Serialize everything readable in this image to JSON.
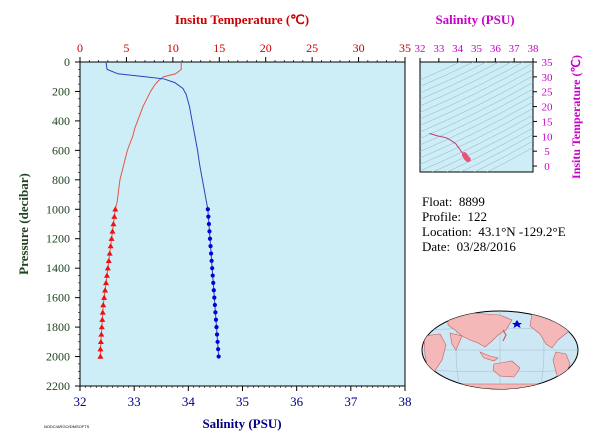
{
  "chart_data": [
    {
      "type": "line",
      "name": "profile",
      "top_axis_label": "Insitu Temperature (℃)",
      "bottom_axis_label": "Salinity (PSU)",
      "left_axis_label": "Pressure (decibar)",
      "temperature_ticks": [
        "0",
        "5",
        "10",
        "15",
        "20",
        "25",
        "30",
        "35"
      ],
      "salinity_ticks": [
        "32",
        "33",
        "34",
        "35",
        "36",
        "37",
        "38"
      ],
      "pressure_ticks": [
        "0",
        "200",
        "400",
        "600",
        "800",
        "1000",
        "1200",
        "1400",
        "1600",
        "1800",
        "2000",
        "2200"
      ],
      "xlim_temperature": [
        0,
        35
      ],
      "xlim_salinity": [
        32,
        38
      ],
      "ylim_pressure": [
        2200,
        0
      ],
      "colors": {
        "temperature": "#e8534a",
        "salinity": "#2244bb",
        "temp_axis": "#cc0000",
        "sal_axis": "#000080",
        "plot_bg": "#cdeef6"
      },
      "series": [
        {
          "key": "temperature",
          "line": [
            [
              10.9,
              0
            ],
            [
              10.9,
              50
            ],
            [
              10.3,
              80
            ],
            [
              9.0,
              100
            ],
            [
              8.4,
              130
            ],
            [
              8.0,
              160
            ],
            [
              7.6,
              200
            ],
            [
              7.2,
              250
            ],
            [
              6.8,
              300
            ],
            [
              6.5,
              350
            ],
            [
              6.2,
              400
            ],
            [
              5.9,
              450
            ],
            [
              5.7,
              500
            ],
            [
              5.4,
              550
            ],
            [
              5.1,
              600
            ],
            [
              4.9,
              650
            ],
            [
              4.7,
              700
            ],
            [
              4.5,
              750
            ],
            [
              4.3,
              800
            ],
            [
              4.2,
              850
            ],
            [
              4.1,
              900
            ],
            [
              4.0,
              950
            ],
            [
              3.8,
              1000
            ]
          ],
          "markers": [
            [
              3.8,
              1000
            ],
            [
              3.7,
              1050
            ],
            [
              3.6,
              1100
            ],
            [
              3.5,
              1150
            ],
            [
              3.4,
              1200
            ],
            [
              3.3,
              1250
            ],
            [
              3.2,
              1300
            ],
            [
              3.1,
              1350
            ],
            [
              3.0,
              1400
            ],
            [
              2.9,
              1450
            ],
            [
              2.8,
              1500
            ],
            [
              2.7,
              1550
            ],
            [
              2.6,
              1600
            ],
            [
              2.5,
              1650
            ],
            [
              2.45,
              1700
            ],
            [
              2.4,
              1750
            ],
            [
              2.35,
              1800
            ],
            [
              2.3,
              1850
            ],
            [
              2.25,
              1900
            ],
            [
              2.2,
              1950
            ],
            [
              2.2,
              2000
            ]
          ]
        },
        {
          "key": "salinity",
          "line": [
            [
              32.48,
              0
            ],
            [
              32.5,
              50
            ],
            [
              32.7,
              80
            ],
            [
              33.2,
              100
            ],
            [
              33.55,
              115
            ],
            [
              33.75,
              140
            ],
            [
              33.9,
              180
            ],
            [
              33.96,
              220
            ],
            [
              34.02,
              300
            ],
            [
              34.07,
              400
            ],
            [
              34.12,
              500
            ],
            [
              34.17,
              600
            ],
            [
              34.21,
              700
            ],
            [
              34.26,
              800
            ],
            [
              34.31,
              900
            ],
            [
              34.36,
              1000
            ]
          ],
          "markers": [
            [
              34.36,
              1000
            ],
            [
              34.37,
              1050
            ],
            [
              34.38,
              1100
            ],
            [
              34.39,
              1150
            ],
            [
              34.4,
              1200
            ],
            [
              34.41,
              1250
            ],
            [
              34.42,
              1300
            ],
            [
              34.43,
              1350
            ],
            [
              34.44,
              1400
            ],
            [
              34.45,
              1450
            ],
            [
              34.46,
              1500
            ],
            [
              34.47,
              1550
            ],
            [
              34.48,
              1600
            ],
            [
              34.49,
              1650
            ],
            [
              34.5,
              1700
            ],
            [
              34.51,
              1750
            ],
            [
              34.52,
              1800
            ],
            [
              34.53,
              1850
            ],
            [
              34.54,
              1900
            ],
            [
              34.55,
              1950
            ],
            [
              34.56,
              2000
            ]
          ]
        }
      ]
    },
    {
      "type": "scatter",
      "name": "ts-diagram",
      "top_axis_label": "Salinity (PSU)",
      "right_axis_label": "Insitu Temperature (℃)",
      "salinity_ticks": [
        "32",
        "33",
        "34",
        "35",
        "36",
        "37",
        "38"
      ],
      "temperature_ticks": [
        "0",
        "5",
        "10",
        "15",
        "20",
        "25",
        "30",
        "35"
      ],
      "xlim": [
        32,
        38
      ],
      "ylim": [
        -2,
        35
      ],
      "color": "#cc44cc",
      "line_color": "#e8537a",
      "line": [
        [
          32.5,
          11
        ],
        [
          32.9,
          10.2
        ],
        [
          33.4,
          9.5
        ],
        [
          33.7,
          8.4
        ],
        [
          33.9,
          7.5
        ],
        [
          34.0,
          6.6
        ],
        [
          34.1,
          5.8
        ],
        [
          34.2,
          4.8
        ],
        [
          34.3,
          4.1
        ],
        [
          34.36,
          3.8
        ]
      ],
      "markers": [
        [
          34.36,
          3.8
        ],
        [
          34.38,
          3.6
        ],
        [
          34.4,
          3.4
        ],
        [
          34.42,
          3.2
        ],
        [
          34.44,
          3.0
        ],
        [
          34.46,
          2.8
        ],
        [
          34.48,
          2.6
        ],
        [
          34.5,
          2.5
        ],
        [
          34.52,
          2.4
        ],
        [
          34.54,
          2.3
        ],
        [
          34.56,
          2.2
        ]
      ]
    }
  ],
  "info": {
    "float_label": "Float:",
    "float_value": "8899",
    "profile_label": "Profile:",
    "profile_value": "122",
    "location_label": "Location:",
    "location_value": "43.1°N  -129.2°E",
    "date_label": "Date:",
    "date_value": "03/28/2016"
  },
  "map": {
    "marker_lat": 43.1,
    "marker_lon": -129.2,
    "land_color": "#f4b8b8",
    "ocean_color": "#cde8f4",
    "marker_color": "#0000cc"
  },
  "footer_code": "NODC/ARGO/DMSOFTS"
}
